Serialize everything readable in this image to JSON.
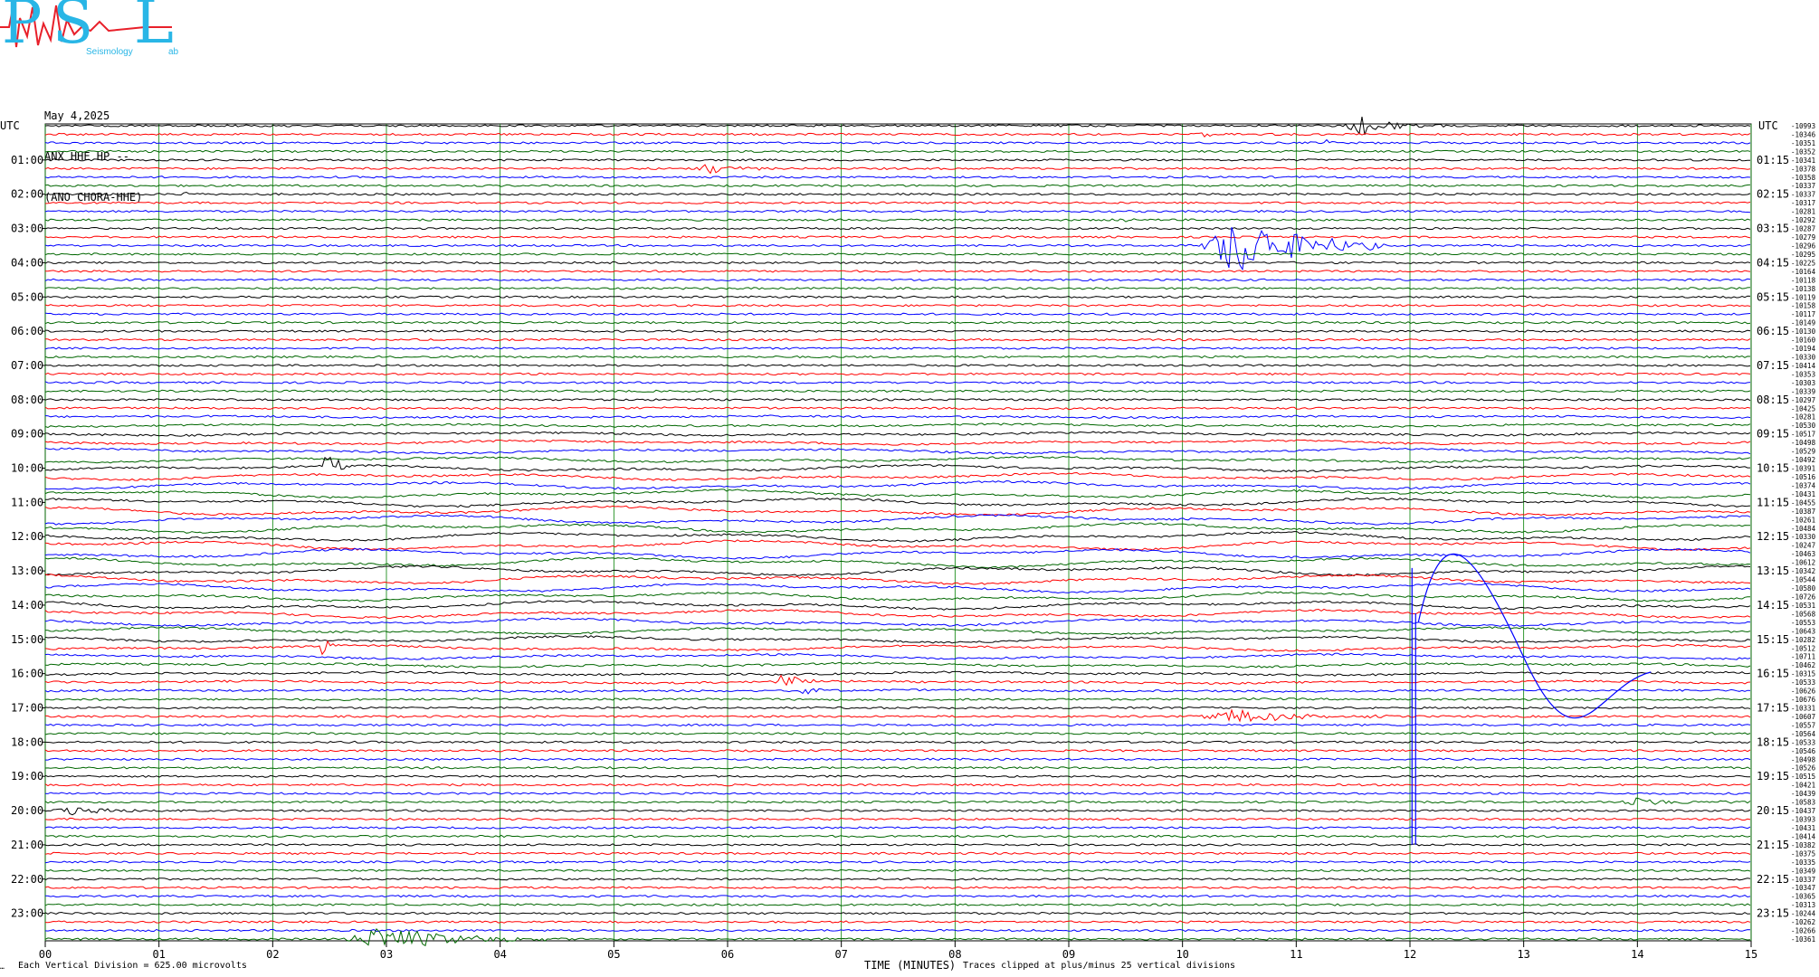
{
  "logo": {
    "letters": [
      "P",
      "S",
      "L"
    ],
    "small_text": "Seismology",
    "small_text_2": "ab",
    "colors": {
      "logo": "#29b6e6",
      "wave": "#e8202a"
    }
  },
  "header": {
    "date": "May 4,2025",
    "station": "ANX HHE HP --",
    "location": "(ANO CHORA-HHE)"
  },
  "chart_data": {
    "type": "line",
    "title": "",
    "xlabel": "TIME (MINUTES)",
    "xlim": [
      0,
      15
    ],
    "x_ticks": [
      "00",
      "01",
      "02",
      "03",
      "04",
      "05",
      "06",
      "07",
      "08",
      "09",
      "10",
      "11",
      "12",
      "13",
      "14",
      "15"
    ],
    "left_axis_label": "UTC",
    "right_axis_label": "UTC",
    "left_hour_labels": [
      "01:00",
      "02:00",
      "03:00",
      "04:00",
      "05:00",
      "06:00",
      "07:00",
      "08:00",
      "09:00",
      "10:00",
      "11:00",
      "12:00",
      "13:00",
      "14:00",
      "15:00",
      "16:00",
      "17:00",
      "18:00",
      "19:00",
      "20:00",
      "21:00",
      "22:00",
      "23:00"
    ],
    "right_hour_labels": [
      "01:15",
      "02:15",
      "03:15",
      "04:15",
      "05:15",
      "06:15",
      "07:15",
      "08:15",
      "09:15",
      "10:15",
      "11:15",
      "12:15",
      "13:15",
      "14:15",
      "15:15",
      "16:15",
      "17:15",
      "18:15",
      "19:15",
      "20:15",
      "21:15",
      "22:15",
      "23:15"
    ],
    "trace_colors": [
      "#000000",
      "#ff0000",
      "#0000ff",
      "#006600"
    ],
    "trace_count": 96,
    "offsets": [
      "-10993",
      "-10346",
      "-10351",
      "-10352",
      "-10341",
      "-10378",
      "-10358",
      "-10337",
      "-10337",
      "-10317",
      "-10281",
      "-10292",
      "-10287",
      "-10279",
      "-10296",
      "-10295",
      "-10225",
      "-10164",
      "-10118",
      "-10138",
      "-10119",
      "-10158",
      "-10117",
      "-10149",
      "-10130",
      "-10160",
      "-10194",
      "-10330",
      "-10414",
      "-10353",
      "-10303",
      "-10339",
      "-10297",
      "-10425",
      "-10281",
      "-10530",
      "-10517",
      "-10498",
      "-10529",
      "-10492",
      "-10391",
      "-10516",
      "-10374",
      "-10431",
      "-10455",
      "-10387",
      "-10261",
      "-10484",
      "-10330",
      "-10247",
      "-10463",
      "-10612",
      "-10342",
      "-10544",
      "-10580",
      "-10726",
      "-10531",
      "-10568",
      "-10553",
      "-10643",
      "-10282",
      "-10512",
      "-10711",
      "-10462",
      "-10315",
      "-10533",
      "-10626",
      "-10676",
      "-10331",
      "-10607",
      "-10557",
      "-10564",
      "-10533",
      "-10546",
      "-10498",
      "-10526",
      "-10515",
      "-10421",
      "-10439",
      "-10583",
      "-10437",
      "-10393",
      "-10431",
      "-10414",
      "-10382",
      "-10375",
      "-10335",
      "-10349",
      "-10337",
      "-10347",
      "-10365",
      "-10313",
      "-10244",
      "-10262",
      "-10266",
      "-10361"
    ],
    "events": [
      {
        "trace": 0,
        "start_min": 11.4,
        "end_min": 12.3,
        "amplitude": 12,
        "color": "#000000"
      },
      {
        "trace": 1,
        "start_min": 10.15,
        "end_min": 10.3,
        "amplitude": 5,
        "color": "#ff0000"
      },
      {
        "trace": 2,
        "start_min": 11.25,
        "end_min": 11.35,
        "amplitude": 4,
        "color": "#0000ff"
      },
      {
        "trace": 5,
        "start_min": 5.7,
        "end_min": 6.35,
        "amplitude": 7,
        "color": "#ff0000"
      },
      {
        "trace": 8,
        "start_min": 1.2,
        "end_min": 1.3,
        "amplitude": 5,
        "color": "#000000"
      },
      {
        "trace": 11,
        "start_min": 9.4,
        "end_min": 9.7,
        "amplitude": 3,
        "color": "#006600"
      },
      {
        "trace": 14,
        "start_min": 10.15,
        "end_min": 11.8,
        "amplitude": 34,
        "color": "#0000ff"
      },
      {
        "trace": 40,
        "start_min": 2.4,
        "end_min": 2.7,
        "amplitude": 18,
        "color": "#000000"
      },
      {
        "trace": 61,
        "start_min": 2.4,
        "end_min": 2.6,
        "amplitude": 13,
        "color": "#ff0000"
      },
      {
        "trace": 65,
        "start_min": 6.4,
        "end_min": 6.8,
        "amplitude": 11,
        "color": "#ff0000"
      },
      {
        "trace": 66,
        "start_min": 6.6,
        "end_min": 7.0,
        "amplitude": 5,
        "color": "#0000ff"
      },
      {
        "trace": 69,
        "start_min": 10.1,
        "end_min": 11.8,
        "amplitude": 8,
        "color": "#ff0000"
      },
      {
        "trace": 79,
        "start_min": 13.7,
        "end_min": 15.0,
        "amplitude": 5,
        "color": "#006600"
      },
      {
        "trace": 80,
        "start_min": 0.0,
        "end_min": 1.1,
        "amplitude": 5,
        "color": "#000000"
      },
      {
        "trace": 95,
        "start_min": 2.6,
        "end_min": 4.4,
        "amplitude": 14,
        "color": "#006600"
      }
    ],
    "clipped_spike": {
      "trace": 58,
      "minute": 12.05,
      "color": "#0000ff"
    }
  },
  "footer": {
    "vertical_division": "Each Vertical Division = 625.00 microvolts",
    "clip_note": "Traces clipped at plus/minus 25 vertical divisions",
    "corner_mark": "…"
  }
}
